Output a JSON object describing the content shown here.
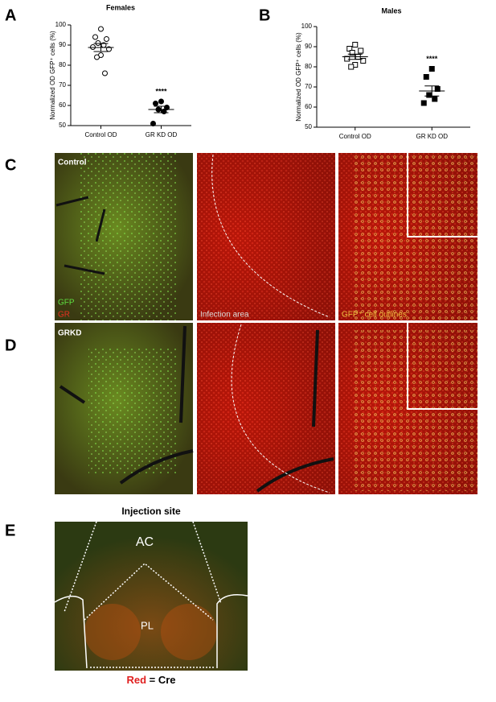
{
  "panel_letters": [
    "A",
    "B",
    "C",
    "D",
    "E"
  ],
  "chart_data": [
    {
      "type": "strip",
      "title": "Females",
      "ylabel": "Normalized OD GFP⁺ cells (%)",
      "categories": [
        "Control OD",
        "GR KD OD"
      ],
      "ylim": [
        50,
        100
      ],
      "yticks": [
        50,
        60,
        70,
        80,
        90,
        100
      ],
      "series": [
        {
          "name": "Control OD",
          "marker": "circle",
          "filled": false,
          "color": "#000000",
          "values": [
            98,
            94,
            93,
            91,
            90,
            89,
            88,
            85,
            84,
            76
          ],
          "mean": 88.8,
          "error": 2
        },
        {
          "name": "GR KD OD",
          "marker": "circle",
          "filled": true,
          "color": "#000000",
          "values": [
            62,
            61,
            59,
            58,
            57,
            51
          ],
          "mean": 58,
          "error": 1.6,
          "annotation": "****"
        }
      ]
    },
    {
      "type": "strip",
      "title": "Males",
      "ylabel": "Normalized OD GFP⁺ cells (%)",
      "categories": [
        "Control OD",
        "GR KD OD"
      ],
      "ylim": [
        50,
        100
      ],
      "yticks": [
        50,
        60,
        70,
        80,
        90,
        100
      ],
      "series": [
        {
          "name": "Control OD",
          "marker": "square",
          "filled": false,
          "color": "#000000",
          "values": [
            91,
            89,
            88,
            87,
            85,
            84,
            83,
            81,
            80
          ],
          "mean": 85,
          "error": 1.3
        },
        {
          "name": "GR KD OD",
          "marker": "square",
          "filled": true,
          "color": "#000000",
          "values": [
            79,
            75,
            69,
            66,
            64,
            62
          ],
          "mean": 68,
          "error": 2.5,
          "annotation": "****"
        }
      ]
    }
  ],
  "images": {
    "control": {
      "label": "Control",
      "channels": [
        "GFP",
        "GR"
      ],
      "captions": [
        "Infection area",
        "GFP⁺ cell outlines"
      ]
    },
    "grkd": {
      "label": "GRKD"
    },
    "injection": {
      "title": "Injection site",
      "regions": [
        "AC",
        "PL"
      ],
      "legend": {
        "highlight": "Red",
        "text": "= Cre"
      }
    }
  }
}
